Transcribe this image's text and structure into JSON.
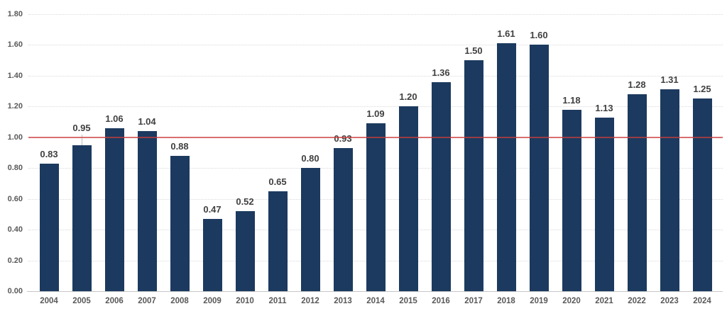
{
  "chart_data": {
    "type": "bar",
    "title": "",
    "xlabel": "",
    "ylabel": "",
    "categories": [
      "2004",
      "2005",
      "2006",
      "2007",
      "2008",
      "2009",
      "2010",
      "2011",
      "2012",
      "2013",
      "2014",
      "2015",
      "2016",
      "2017",
      "2018",
      "2019",
      "2020",
      "2021",
      "2022",
      "2023",
      "2024"
    ],
    "values": [
      0.83,
      0.95,
      1.06,
      1.04,
      0.88,
      0.47,
      0.52,
      0.65,
      0.8,
      0.93,
      1.09,
      1.2,
      1.36,
      1.5,
      1.61,
      1.6,
      1.18,
      1.13,
      1.28,
      1.31,
      1.25
    ],
    "value_labels": [
      "0.83",
      "0.95",
      "1.06",
      "1.04",
      "0.88",
      "0.47",
      "0.52",
      "0.65",
      "0.80",
      "0.93",
      "1.09",
      "1.20",
      "1.36",
      "1.50",
      "1.61",
      "1.60",
      "1.18",
      "1.13",
      "1.28",
      "1.31",
      "1.25"
    ],
    "ylim": [
      0,
      1.8
    ],
    "ytick_labels": [
      "0.00",
      "0.20",
      "0.40",
      "0.60",
      "0.80",
      "1.00",
      "1.20",
      "1.40",
      "1.60",
      "1.80"
    ],
    "ytick_values": [
      0.0,
      0.2,
      0.4,
      0.6,
      0.8,
      1.0,
      1.2,
      1.4,
      1.6,
      1.8
    ],
    "grid": "horizontal-dotted",
    "legend": "none",
    "reference_line": {
      "value": 1.0,
      "color": "rgba(205,60,60,0.72)"
    },
    "leader_line": {
      "category": "2005",
      "color": "#bfbfbf"
    },
    "colors": {
      "bar": "#1c3a5f",
      "value_label_text": "#404040",
      "axis_text": "#595959",
      "gridline": "#dadada",
      "baseline": "#c6c6c6"
    }
  }
}
